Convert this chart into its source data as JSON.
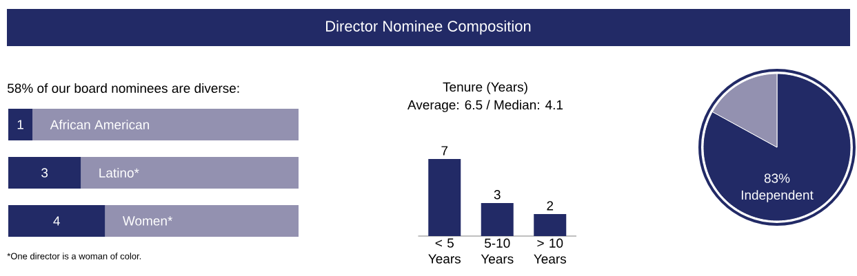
{
  "chart_data": [
    {
      "type": "other",
      "title": "Director Nominee Composition",
      "color": "#222a66"
    },
    {
      "type": "bar",
      "orientation": "horizontal",
      "stacked": true,
      "title": "58% of our board nominees are diverse:",
      "categories": [
        "African American",
        "Latino*",
        "Women*"
      ],
      "series": [
        {
          "color": "#222a66",
          "values": [
            1,
            3,
            4
          ],
          "value_labels": [
            "1",
            "3",
            "4"
          ]
        },
        {
          "color": "#9391b0",
          "values": [
            11,
            9,
            8
          ]
        }
      ],
      "xlim": [
        0,
        12
      ],
      "tick_labels": "y",
      "annotations": [
        "*One director is a woman of color."
      ]
    },
    {
      "type": "bar",
      "title": "Tenure (Years)",
      "subtitle": "Average: 6.5 / Median: 4.1",
      "categories": [
        "< 5 Years",
        "5-10 Years",
        "> 10 Years"
      ],
      "values": [
        7,
        3,
        2
      ],
      "color": "#222a66",
      "data_labels": true,
      "tick_labels": "x"
    },
    {
      "type": "pie",
      "categories": [
        "Independent",
        null
      ],
      "values": [
        83,
        17
      ],
      "colors": [
        "#222a66",
        "#9391b0"
      ],
      "value_labels": [
        "83%",
        null
      ]
    }
  ]
}
